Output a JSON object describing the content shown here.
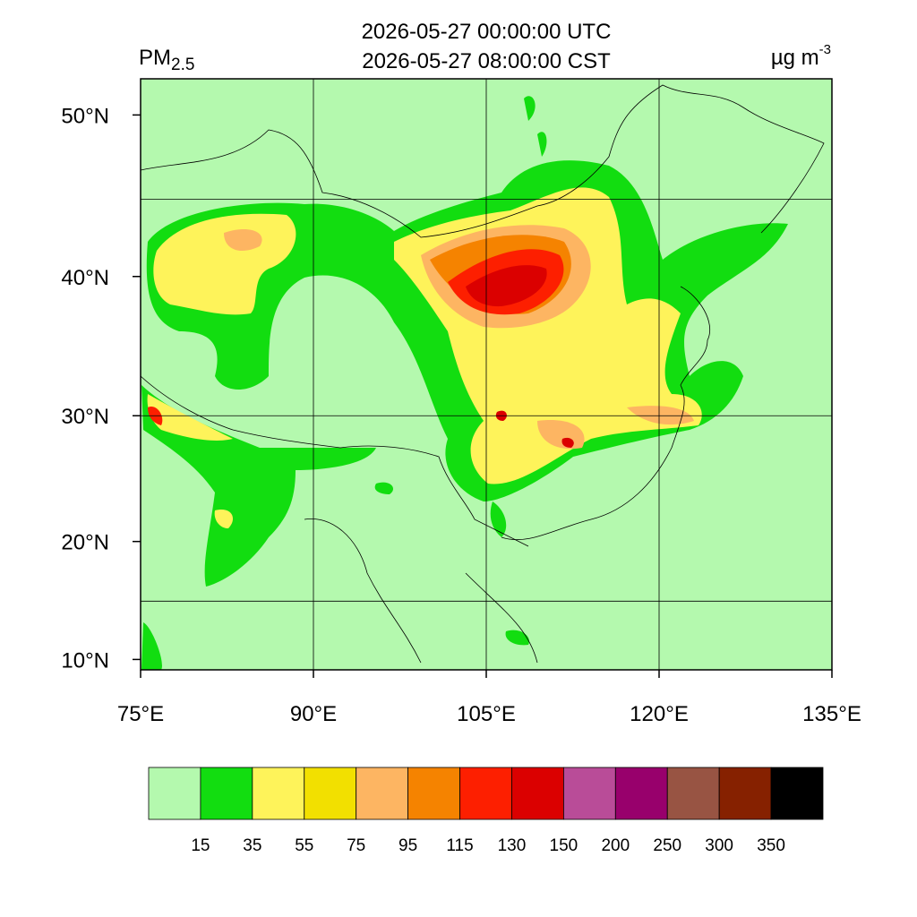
{
  "title": [
    "2026-05-27 00:00:00 UTC",
    "2026-05-27 08:00:00 CST"
  ],
  "variable": {
    "name": "PM",
    "subscript": "2.5"
  },
  "units": {
    "text": "µg m",
    "superscript": "-3"
  },
  "map": {
    "xlim": [
      75,
      135
    ],
    "ylim": [
      9.1,
      52.0
    ],
    "xticks": [
      {
        "value": 75,
        "label": "75°E"
      },
      {
        "value": 90,
        "label": "90°E"
      },
      {
        "value": 105,
        "label": "105°E"
      },
      {
        "value": 120,
        "label": "120°E"
      },
      {
        "value": 135,
        "label": "135°E"
      }
    ],
    "yticks": [
      {
        "value": 10,
        "label": "10°N"
      },
      {
        "value": 20,
        "label": "20°N"
      },
      {
        "value": 30,
        "label": "30°N"
      },
      {
        "value": 40,
        "label": "40°N"
      },
      {
        "value": 50,
        "label": "50°N"
      }
    ],
    "lon_grid": [
      90,
      105,
      120
    ],
    "lat_grid": [
      15,
      30,
      45
    ],
    "background_color": "#b4f9ae"
  },
  "colorbar": {
    "levels": [
      15,
      35,
      55,
      75,
      95,
      115,
      130,
      150,
      200,
      250,
      300,
      350
    ],
    "colors": [
      "#b4f9ae",
      "#12dd10",
      "#fef35a",
      "#f2e000",
      "#fdb562",
      "#f58300",
      "#fd1f00",
      "#db0000",
      "#b94c98",
      "#98006c",
      "#985443",
      "#862100",
      "#000000"
    ]
  }
}
